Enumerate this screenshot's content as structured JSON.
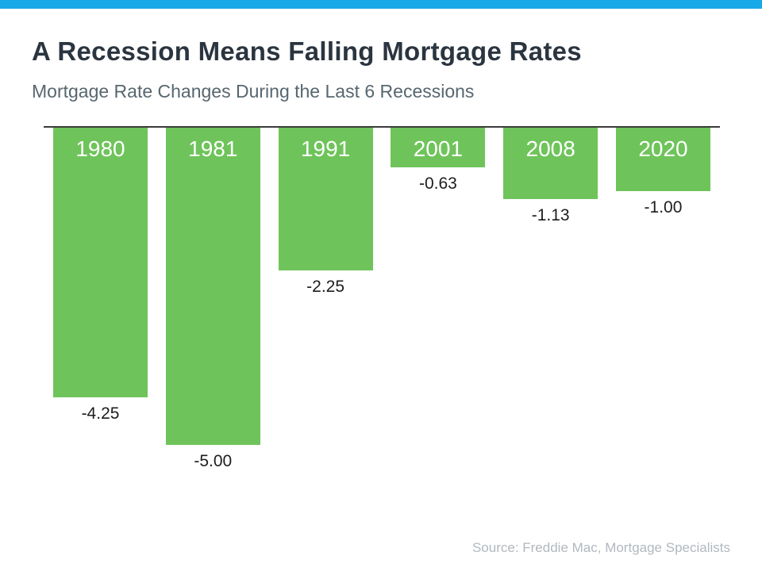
{
  "header": {
    "title": "A Recession Means Falling Mortgage Rates",
    "subtitle": "Mortgage Rate Changes During the Last 6 Recessions"
  },
  "chart_data": {
    "type": "bar",
    "orientation": "vertical",
    "title": "Mortgage Rate Changes During the Last 6 Recessions",
    "categories": [
      "1980",
      "1981",
      "1991",
      "2001",
      "2008",
      "2020"
    ],
    "values": [
      -4.25,
      -5.0,
      -2.25,
      -0.63,
      -1.13,
      -1.0
    ],
    "value_labels": [
      "-4.25",
      "-5.00",
      "-2.25",
      "-0.63",
      "-1.13",
      "-1.00"
    ],
    "ylim": [
      -5.5,
      0
    ],
    "baseline": 0,
    "grid": false,
    "legend": false,
    "bars_hang_from_top_baseline": true,
    "bar_color": "#6EC45A",
    "category_label_color": "#FFFFFF",
    "value_label_color": "#1D1D1D",
    "baseline_color": "#3B3B3B"
  },
  "colors": {
    "accent_bar": "#18A9E8",
    "title_text": "#2B3540",
    "subtitle_text": "#57666F",
    "source_text": "#B2B8BE",
    "background": "#FFFFFF"
  },
  "footer": {
    "source": "Source: Freddie Mac, Mortgage Specialists"
  }
}
